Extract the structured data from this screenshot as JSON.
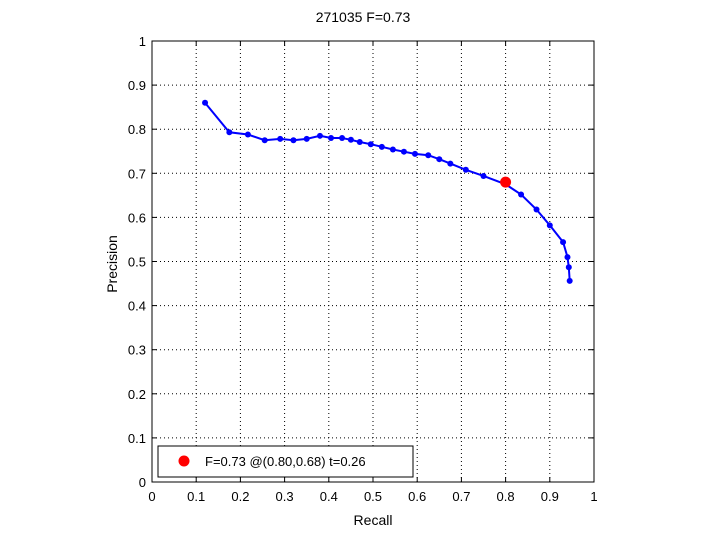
{
  "chart_data": {
    "type": "line",
    "title": "271035 F=0.73",
    "xlabel": "Recall",
    "ylabel": "Precision",
    "xlim": [
      0,
      1
    ],
    "ylim": [
      0,
      1
    ],
    "xticks": [
      "0",
      "0.1",
      "0.2",
      "0.3",
      "0.4",
      "0.5",
      "0.6",
      "0.7",
      "0.8",
      "0.9",
      "1"
    ],
    "yticks": [
      "0",
      "0.1",
      "0.2",
      "0.3",
      "0.4",
      "0.5",
      "0.6",
      "0.7",
      "0.8",
      "0.9",
      "1"
    ],
    "grid": true,
    "grid_style": "dotted",
    "legend_position": "bottom-left",
    "series": [
      {
        "color": "#0000ff",
        "marker": "dot",
        "x": [
          0.12,
          0.175,
          0.217,
          0.255,
          0.29,
          0.32,
          0.35,
          0.38,
          0.405,
          0.43,
          0.45,
          0.47,
          0.495,
          0.52,
          0.545,
          0.57,
          0.595,
          0.625,
          0.65,
          0.675,
          0.71,
          0.75,
          0.8,
          0.835,
          0.87,
          0.9,
          0.93,
          0.94,
          0.943,
          0.945
        ],
        "y": [
          0.86,
          0.793,
          0.788,
          0.775,
          0.778,
          0.775,
          0.778,
          0.785,
          0.78,
          0.78,
          0.776,
          0.771,
          0.766,
          0.76,
          0.754,
          0.749,
          0.744,
          0.741,
          0.732,
          0.722,
          0.708,
          0.694,
          0.675,
          0.652,
          0.618,
          0.582,
          0.544,
          0.51,
          0.487,
          0.456
        ]
      }
    ],
    "highlight": {
      "x": 0.8,
      "y": 0.68,
      "color": "#ff0000",
      "label": "F=0.73 @(0.80,0.68) t=0.26"
    }
  }
}
